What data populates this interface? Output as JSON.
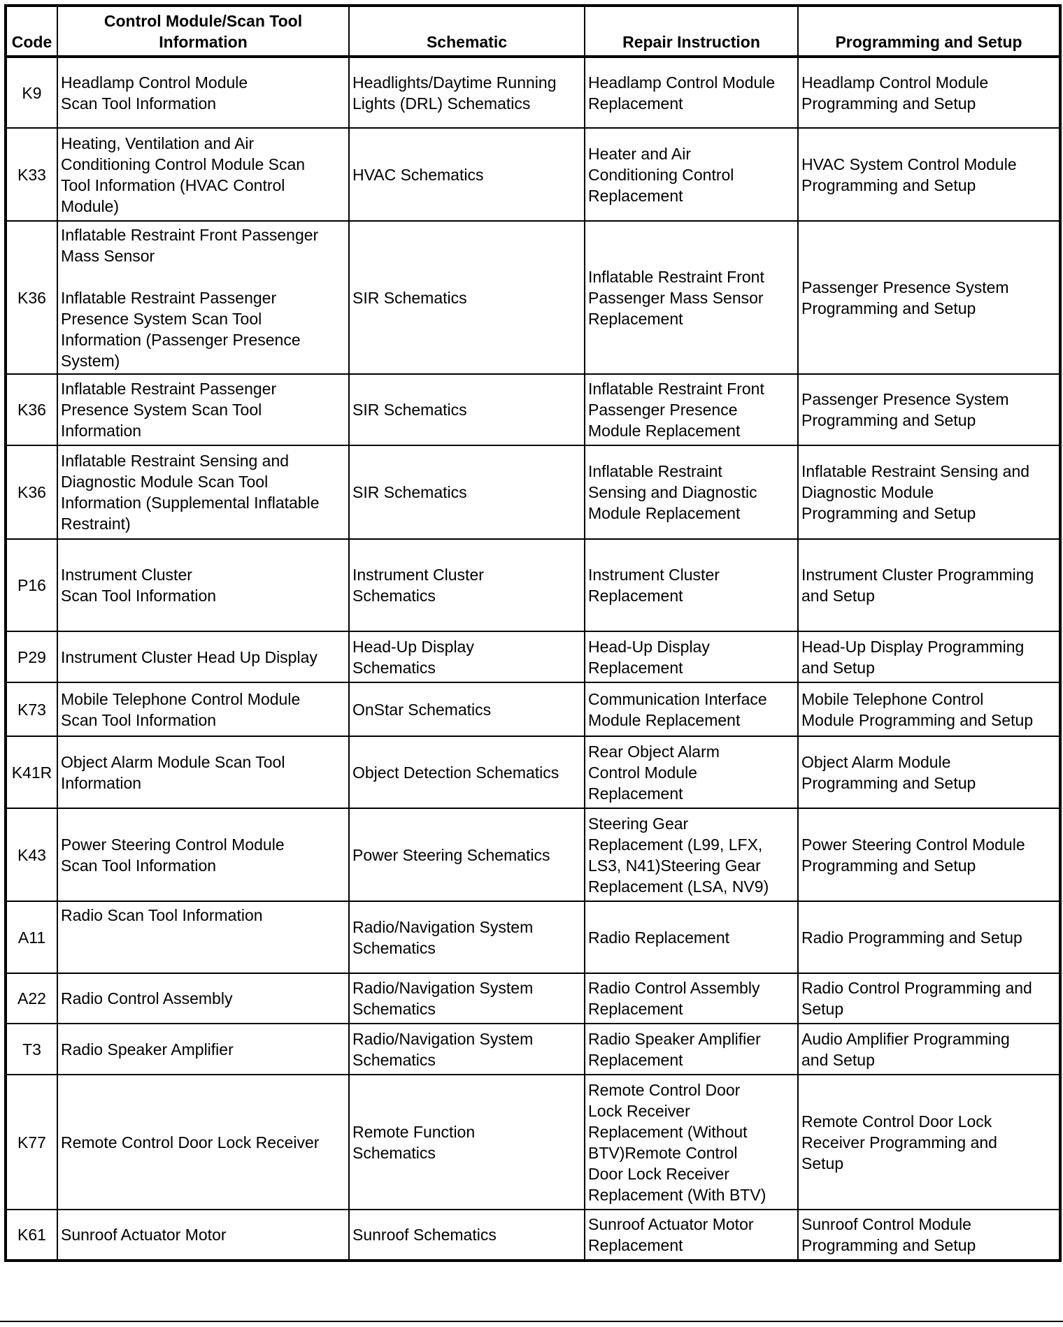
{
  "headers": {
    "code": "Code",
    "module": "Control Module/Scan Tool\nInformation",
    "schematic": "Schematic",
    "repair": "Repair Instruction",
    "programming": "Programming and Setup"
  },
  "rows": [
    {
      "code": "K9",
      "module": "Headlamp Control Module\nScan Tool Information",
      "schematic": "Headlights/Daytime Running\nLights (DRL) Schematics",
      "repair": "Headlamp Control Module\nReplacement",
      "programming": "Headlamp Control Module\nProgramming and Setup"
    },
    {
      "code": "K33",
      "module": "Heating, Ventilation and Air\nConditioning Control Module Scan\nTool Information (HVAC Control\nModule)",
      "schematic": "HVAC Schematics",
      "repair": "Heater and Air\nConditioning Control\nReplacement",
      "programming": "HVAC System Control Module\nProgramming and Setup"
    },
    {
      "code": "K36",
      "module": "Inflatable Restraint Front Passenger\nMass Sensor\n\nInflatable Restraint Passenger\nPresence System Scan Tool\nInformation (Passenger Presence\nSystem)",
      "schematic": "SIR Schematics",
      "repair": "Inflatable Restraint Front\nPassenger Mass Sensor\nReplacement",
      "programming": "Passenger Presence System\nProgramming and Setup"
    },
    {
      "code": "K36",
      "module": "Inflatable Restraint Passenger\nPresence System Scan Tool\nInformation",
      "schematic": "SIR Schematics",
      "repair": "Inflatable Restraint Front\nPassenger Presence\nModule Replacement",
      "programming": "Passenger Presence System\nProgramming and Setup"
    },
    {
      "code": "K36",
      "module": "Inflatable Restraint Sensing and\nDiagnostic Module Scan Tool\nInformation (Supplemental Inflatable\nRestraint)",
      "schematic": "SIR Schematics",
      "repair": "Inflatable Restraint\nSensing and Diagnostic\nModule Replacement",
      "programming": "Inflatable Restraint Sensing and\nDiagnostic Module\nProgramming and Setup"
    },
    {
      "code": "P16",
      "module": "Instrument Cluster\nScan Tool Information",
      "schematic": "Instrument Cluster\nSchematics",
      "repair": "Instrument Cluster\nReplacement",
      "programming": "Instrument Cluster Programming\nand Setup"
    },
    {
      "code": "P29",
      "module": "Instrument Cluster Head Up Display",
      "schematic": "Head-Up Display\nSchematics",
      "repair": "Head-Up Display\nReplacement",
      "programming": "Head-Up Display Programming\nand Setup"
    },
    {
      "code": "K73",
      "module": "Mobile Telephone Control Module\nScan Tool Information",
      "schematic": "OnStar Schematics",
      "repair": "Communication Interface\nModule Replacement",
      "programming": "Mobile Telephone Control\nModule Programming and Setup"
    },
    {
      "code": "K41R",
      "module": "Object Alarm Module Scan Tool\nInformation",
      "schematic": "Object Detection Schematics",
      "repair": "Rear Object Alarm\nControl Module\nReplacement",
      "programming": "Object Alarm Module\nProgramming and Setup"
    },
    {
      "code": "K43",
      "module": "Power Steering Control Module\nScan Tool Information",
      "schematic": "Power Steering Schematics",
      "repair": "Steering Gear\nReplacement (L99, LFX,\nLS3, N41)Steering Gear\nReplacement (LSA, NV9)",
      "programming": "Power Steering Control Module\nProgramming and Setup"
    },
    {
      "code": "A11",
      "module": "Radio Scan Tool Information",
      "schematic": "Radio/Navigation System\nSchematics",
      "repair": "Radio Replacement",
      "programming": "Radio Programming and Setup"
    },
    {
      "code": "A22",
      "module": "Radio Control Assembly",
      "schematic": "Radio/Navigation System\nSchematics",
      "repair": "Radio Control Assembly\nReplacement",
      "programming": "Radio Control Programming and\nSetup"
    },
    {
      "code": "T3",
      "module": "Radio Speaker Amplifier",
      "schematic": "Radio/Navigation System\nSchematics",
      "repair": "Radio Speaker Amplifier\nReplacement",
      "programming": "Audio Amplifier Programming\nand Setup"
    },
    {
      "code": "K77",
      "module": "Remote Control Door Lock Receiver",
      "schematic": "Remote Function\nSchematics",
      "repair": "Remote Control Door\nLock Receiver\nReplacement (Without\nBTV)Remote Control\nDoor Lock Receiver\nReplacement (With BTV)",
      "programming": "Remote Control Door Lock\nReceiver Programming and\nSetup"
    },
    {
      "code": "K61",
      "module": "Sunroof Actuator Motor",
      "schematic": "Sunroof Schematics",
      "repair": "Sunroof Actuator Motor\nReplacement",
      "programming": "Sunroof Control Module\nProgramming and Setup"
    }
  ]
}
